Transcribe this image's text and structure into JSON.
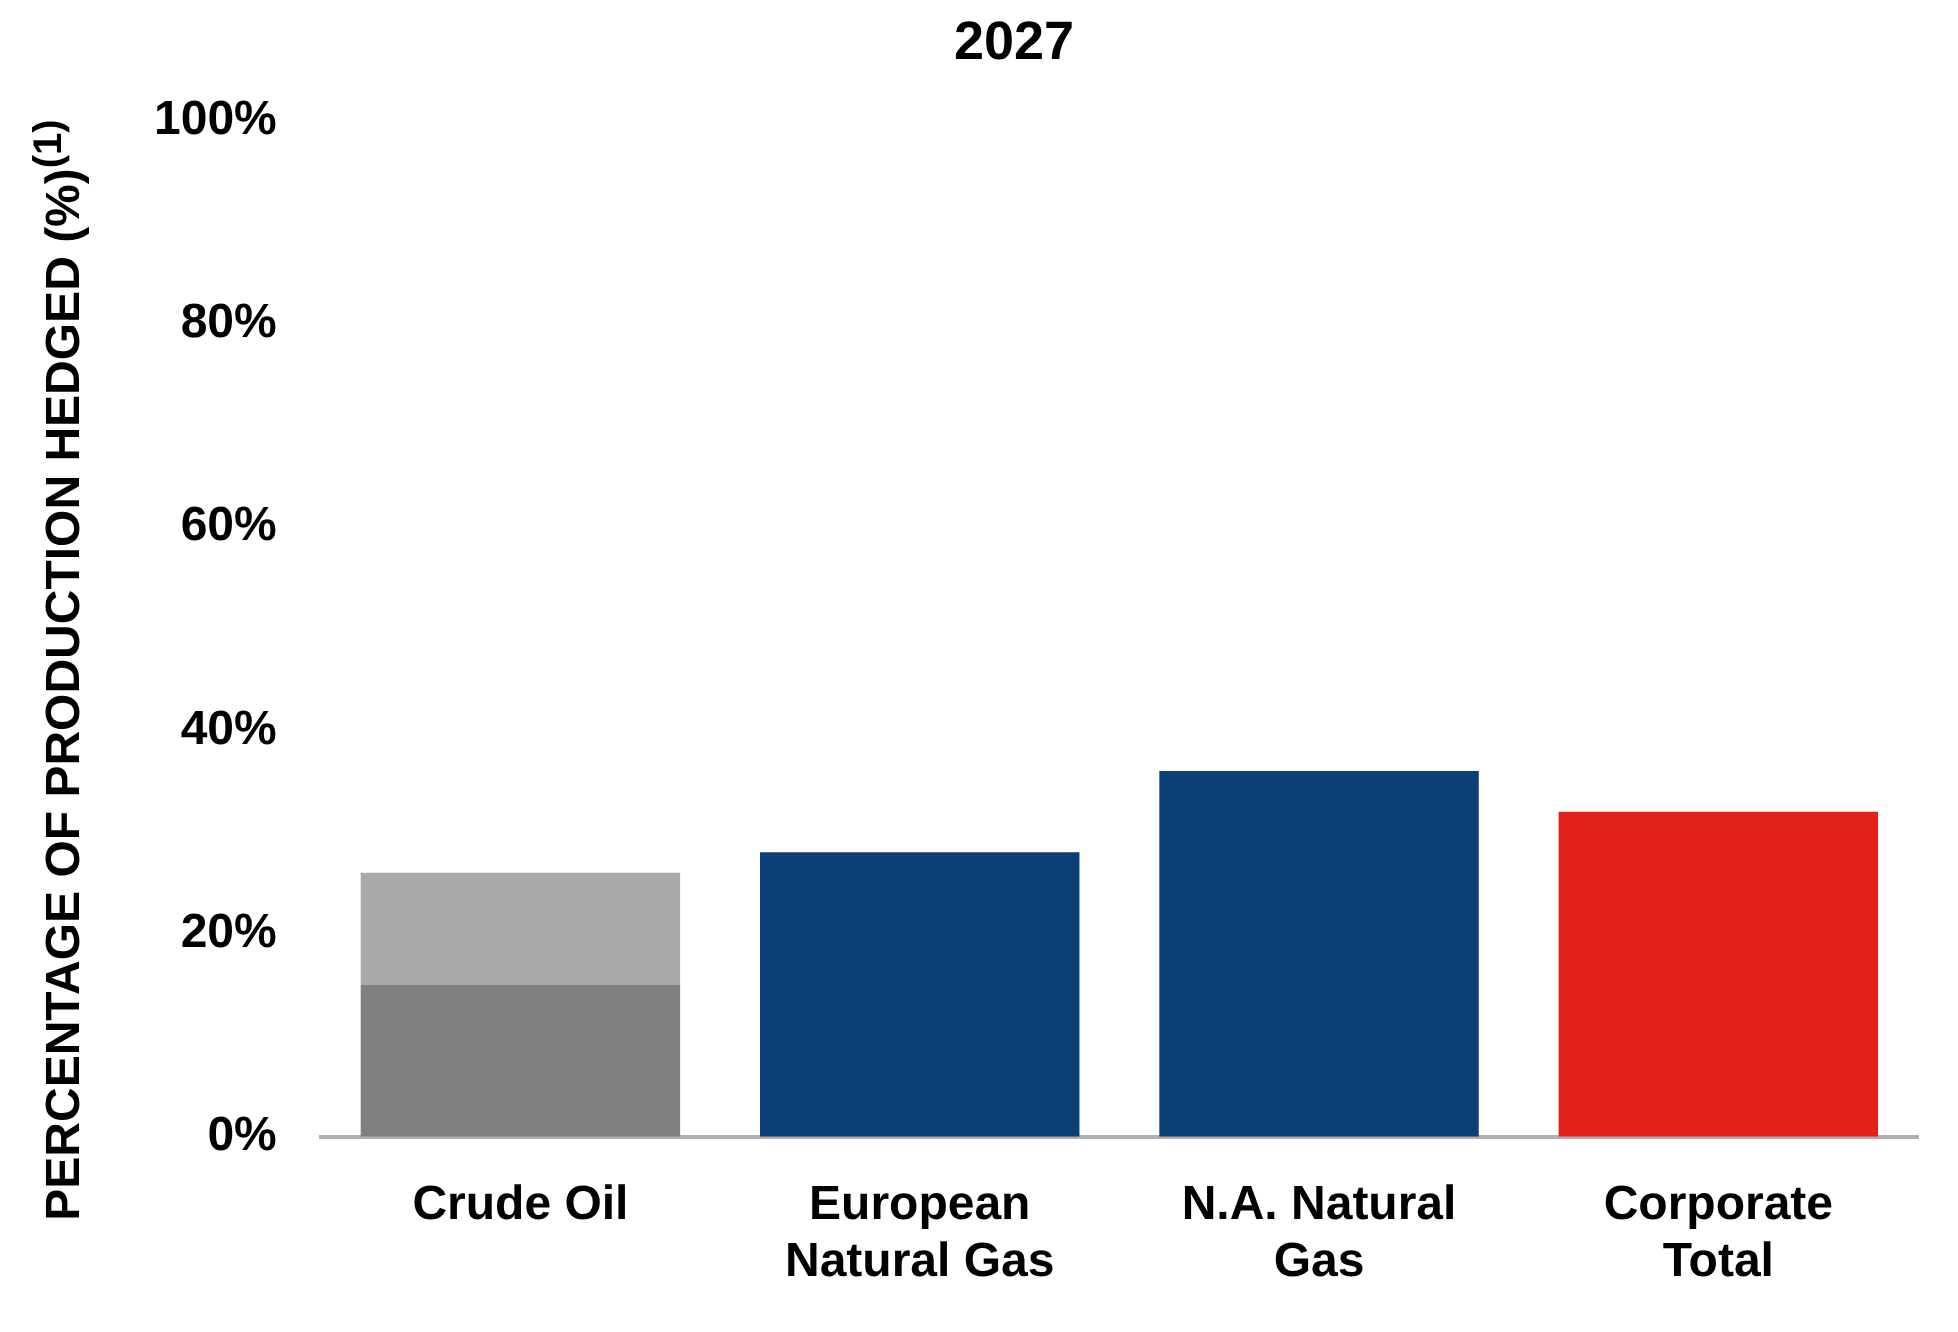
{
  "chart_data": {
    "type": "bar",
    "title": "2027",
    "ylabel": "PERCENTAGE OF PRODUCTION HEDGED (%)$^{(1)}$",
    "categories": [
      "Crude Oil",
      "European Natural Gas",
      "N.A. Natural Gas",
      "Corporate Total"
    ],
    "stacked": true,
    "series": [
      {
        "colors": [
          "#7f7f7f",
          "#0b3f76",
          "#0b3f76",
          "#e3201b"
        ],
        "values": [
          15,
          28,
          36,
          32
        ]
      },
      {
        "colors": [
          "#a9a9a9",
          null,
          null,
          null
        ],
        "values": [
          11,
          null,
          null,
          null
        ]
      }
    ],
    "ylim": [
      0,
      100
    ],
    "yticks": [
      {
        "value": 0,
        "label": "0%"
      },
      {
        "value": 20,
        "label": "20%"
      },
      {
        "value": 40,
        "label": "40%"
      },
      {
        "value": 60,
        "label": "60%"
      },
      {
        "value": 80,
        "label": "80%"
      },
      {
        "value": 100,
        "label": "100%"
      }
    ],
    "grid": false,
    "legend": false
  }
}
